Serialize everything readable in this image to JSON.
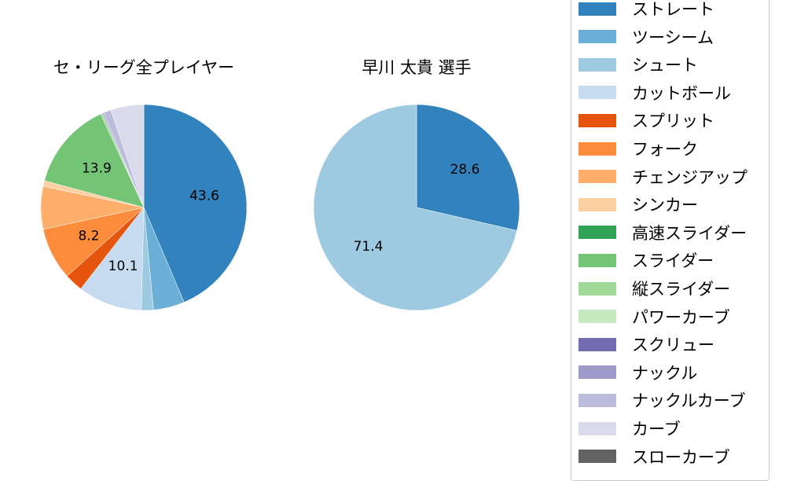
{
  "chart_data": [
    {
      "type": "pie",
      "title": "セ・リーグ全プレイヤー",
      "start_angle": 90,
      "direction": "clockwise",
      "categories": [
        "ストレート",
        "ツーシーム",
        "シュート",
        "カットボール",
        "スプリット",
        "フォーク",
        "チェンジアップ",
        "シンカー",
        "スライダー",
        "縦スライダー",
        "ナックル",
        "ナックルカーブ",
        "カーブ"
      ],
      "values": [
        43.6,
        4.9,
        1.9,
        10.1,
        2.9,
        8.2,
        6.7,
        0.9,
        13.9,
        0.3,
        0.2,
        1.2,
        5.2
      ],
      "labels_shown": {
        "ストレート": "43.6",
        "カットボール": "10.1",
        "フォーク": "8.2",
        "スライダー": "13.9"
      }
    },
    {
      "type": "pie",
      "title": "早川 太貴  選手",
      "start_angle": 90,
      "direction": "clockwise",
      "categories": [
        "ストレート",
        "シュート"
      ],
      "values": [
        28.6,
        71.4
      ],
      "labels_shown": {
        "ストレート": "28.6",
        "シュート": "71.4"
      }
    }
  ],
  "titles": {
    "left": "セ・リーグ全プレイヤー",
    "right": "早川 太貴  選手"
  },
  "legend": [
    {
      "label": "ストレート",
      "color": "#3182bd"
    },
    {
      "label": "ツーシーム",
      "color": "#6baed6"
    },
    {
      "label": "シュート",
      "color": "#9ecae1"
    },
    {
      "label": "カットボール",
      "color": "#c6dbef"
    },
    {
      "label": "スプリット",
      "color": "#e6550d"
    },
    {
      "label": "フォーク",
      "color": "#fd8d3c"
    },
    {
      "label": "チェンジアップ",
      "color": "#fdae6b"
    },
    {
      "label": "シンカー",
      "color": "#fdd0a2"
    },
    {
      "label": "高速スライダー",
      "color": "#31a354"
    },
    {
      "label": "スライダー",
      "color": "#74c476"
    },
    {
      "label": "縦スライダー",
      "color": "#a1d99b"
    },
    {
      "label": "パワーカーブ",
      "color": "#c7e9c0"
    },
    {
      "label": "スクリュー",
      "color": "#756bb1"
    },
    {
      "label": "ナックル",
      "color": "#9e9ac8"
    },
    {
      "label": "ナックルカーブ",
      "color": "#bcbddc"
    },
    {
      "label": "カーブ",
      "color": "#dadaeb"
    },
    {
      "label": "スローカーブ",
      "color": "#636363"
    }
  ]
}
